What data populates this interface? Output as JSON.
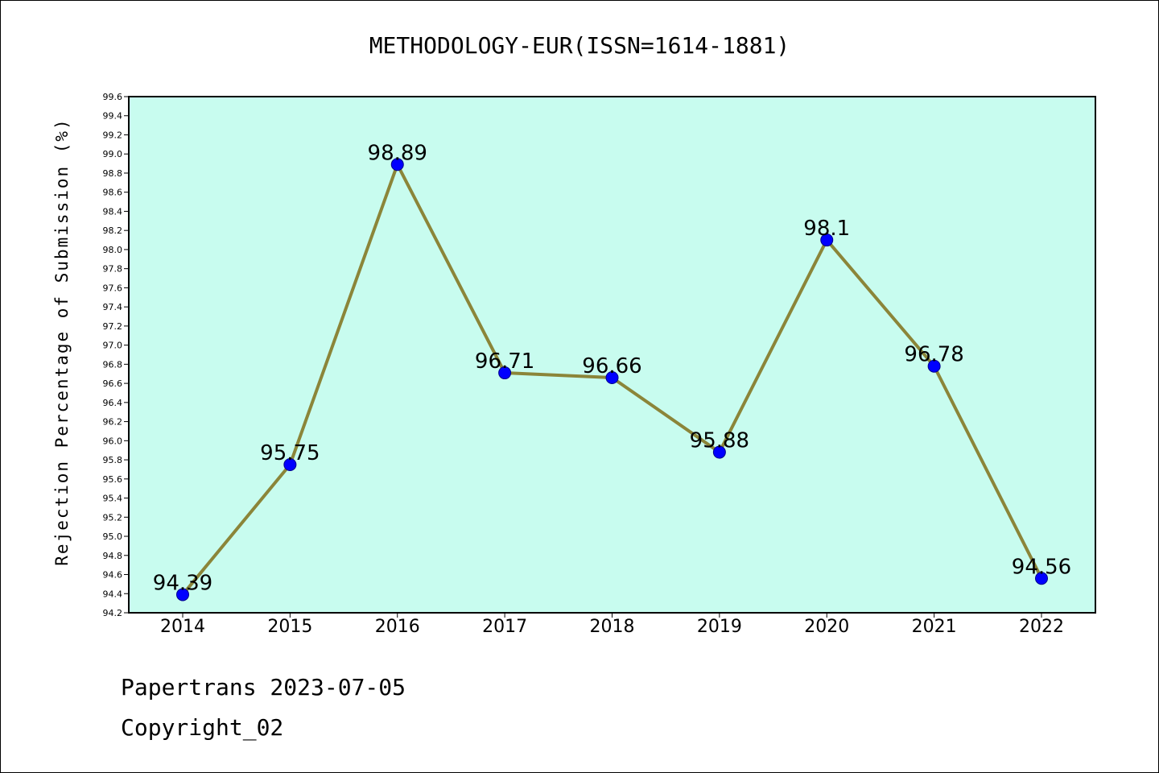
{
  "chart_data": {
    "type": "line",
    "title": "METHODOLOGY-EUR(ISSN=1614-1881)",
    "ylabel": "Rejection Percentage of Submission (%)",
    "xlabel": "",
    "categories": [
      "2014",
      "2015",
      "2016",
      "2017",
      "2018",
      "2019",
      "2020",
      "2021",
      "2022"
    ],
    "values": [
      94.39,
      95.75,
      98.89,
      96.71,
      96.66,
      95.88,
      98.1,
      96.78,
      94.56
    ],
    "data_labels": [
      "94.39",
      "95.75",
      "98.89",
      "96.71",
      "96.66",
      "95.88",
      "98.1",
      "96.78",
      "94.56"
    ],
    "ylim": [
      94.2,
      99.6
    ],
    "yticks": [
      "94.2",
      "94.4",
      "94.6",
      "94.8",
      "95.0",
      "95.2",
      "95.4",
      "95.6",
      "95.8",
      "96.0",
      "96.2",
      "96.4",
      "96.6",
      "96.8",
      "97.0",
      "97.2",
      "97.4",
      "97.6",
      "97.8",
      "98.0",
      "98.2",
      "98.4",
      "98.6",
      "98.8",
      "99.0",
      "99.2",
      "99.4",
      "99.6"
    ],
    "grid": false,
    "colors": {
      "plot_background": "#c8fcef",
      "line": "#8b8539",
      "marker": "#0000ff"
    }
  },
  "footer": {
    "line1": "Papertrans 2023-07-05",
    "line2": "Copyright_02"
  }
}
